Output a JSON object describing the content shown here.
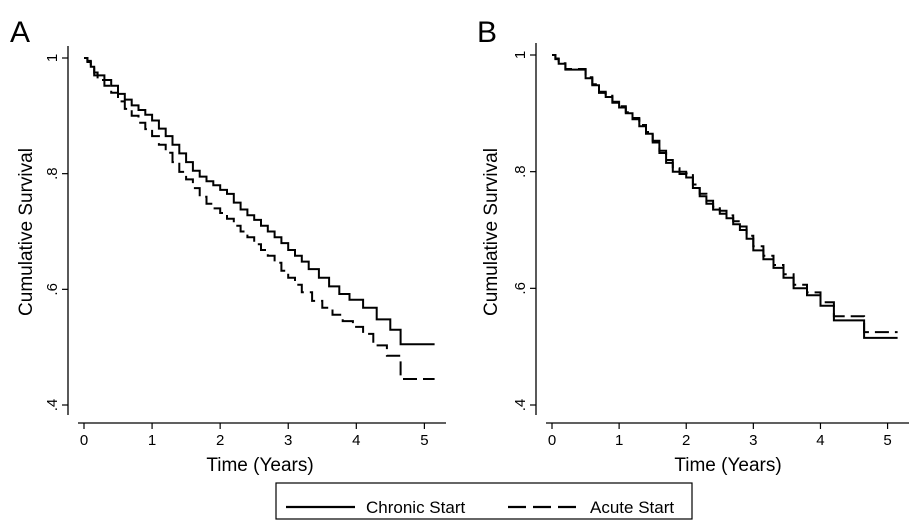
{
  "chart_data": [
    {
      "type": "line",
      "title": "",
      "panel_label": "A",
      "xlabel": "Time (Years)",
      "ylabel": "Cumulative Survival",
      "xlim": [
        0,
        5.2
      ],
      "ylim": [
        0.4,
        1.0
      ],
      "x_ticks": [
        0,
        1,
        2,
        3,
        4,
        5
      ],
      "x_tick_labels": [
        "0",
        "1",
        "2",
        "3",
        "4",
        "5"
      ],
      "y_ticks": [
        0.4,
        0.6,
        0.8,
        1.0
      ],
      "y_tick_labels": [
        ".4",
        ".6",
        ".8",
        "1"
      ],
      "grid": false,
      "step": true,
      "series": [
        {
          "name": "Chronic Start",
          "style": "solid",
          "x": [
            0,
            0.05,
            0.1,
            0.15,
            0.2,
            0.3,
            0.4,
            0.5,
            0.6,
            0.7,
            0.8,
            0.9,
            1.0,
            1.1,
            1.2,
            1.3,
            1.4,
            1.5,
            1.6,
            1.7,
            1.8,
            1.9,
            2.0,
            2.1,
            2.2,
            2.3,
            2.4,
            2.5,
            2.6,
            2.7,
            2.8,
            2.9,
            3.0,
            3.1,
            3.2,
            3.3,
            3.45,
            3.6,
            3.75,
            3.9,
            4.1,
            4.3,
            4.5,
            4.65,
            5.15
          ],
          "values": [
            1.0,
            0.995,
            0.985,
            0.975,
            0.97,
            0.962,
            0.952,
            0.938,
            0.928,
            0.918,
            0.91,
            0.902,
            0.892,
            0.878,
            0.865,
            0.85,
            0.835,
            0.82,
            0.805,
            0.795,
            0.787,
            0.78,
            0.772,
            0.765,
            0.75,
            0.738,
            0.728,
            0.72,
            0.71,
            0.7,
            0.69,
            0.68,
            0.668,
            0.658,
            0.648,
            0.635,
            0.62,
            0.605,
            0.592,
            0.582,
            0.568,
            0.548,
            0.53,
            0.505,
            0.505
          ]
        },
        {
          "name": "Acute Start",
          "style": "dashed",
          "x": [
            0,
            0.05,
            0.1,
            0.15,
            0.2,
            0.3,
            0.4,
            0.5,
            0.6,
            0.7,
            0.8,
            0.9,
            1.0,
            1.1,
            1.2,
            1.3,
            1.4,
            1.5,
            1.6,
            1.7,
            1.8,
            1.9,
            2.0,
            2.1,
            2.2,
            2.3,
            2.4,
            2.5,
            2.6,
            2.7,
            2.8,
            2.9,
            3.0,
            3.1,
            3.2,
            3.35,
            3.5,
            3.65,
            3.8,
            3.95,
            4.1,
            4.25,
            4.45,
            4.65,
            5.15
          ],
          "values": [
            1.0,
            0.993,
            0.982,
            0.97,
            0.962,
            0.952,
            0.94,
            0.925,
            0.912,
            0.9,
            0.888,
            0.877,
            0.865,
            0.85,
            0.836,
            0.82,
            0.803,
            0.79,
            0.775,
            0.76,
            0.748,
            0.74,
            0.732,
            0.722,
            0.71,
            0.7,
            0.69,
            0.678,
            0.668,
            0.658,
            0.646,
            0.632,
            0.62,
            0.608,
            0.595,
            0.58,
            0.568,
            0.556,
            0.545,
            0.535,
            0.523,
            0.503,
            0.485,
            0.445,
            0.445
          ]
        }
      ]
    },
    {
      "type": "line",
      "title": "",
      "panel_label": "B",
      "xlabel": "Time (Years)",
      "ylabel": "Cumulative Survival",
      "xlim": [
        0,
        5.2
      ],
      "ylim": [
        0.4,
        1.0
      ],
      "x_ticks": [
        0,
        1,
        2,
        3,
        4,
        5
      ],
      "x_tick_labels": [
        "0",
        "1",
        "2",
        "3",
        "4",
        "5"
      ],
      "y_ticks": [
        0.4,
        0.6,
        0.8,
        1.0
      ],
      "y_tick_labels": [
        ".4",
        ".6",
        ".8",
        "1"
      ],
      "grid": false,
      "step": true,
      "series": [
        {
          "name": "Chronic Start",
          "style": "solid",
          "x": [
            0,
            0.05,
            0.1,
            0.2,
            0.3,
            0.5,
            0.6,
            0.7,
            0.8,
            0.9,
            1.0,
            1.1,
            1.2,
            1.3,
            1.4,
            1.5,
            1.6,
            1.7,
            1.8,
            1.9,
            2.0,
            2.1,
            2.2,
            2.3,
            2.4,
            2.5,
            2.6,
            2.7,
            2.8,
            2.9,
            3.0,
            3.15,
            3.3,
            3.45,
            3.6,
            3.8,
            4.0,
            4.2,
            4.65,
            5.15
          ],
          "values": [
            1.0,
            0.993,
            0.985,
            0.975,
            0.975,
            0.96,
            0.948,
            0.935,
            0.928,
            0.918,
            0.91,
            0.9,
            0.89,
            0.878,
            0.865,
            0.85,
            0.832,
            0.815,
            0.8,
            0.796,
            0.79,
            0.772,
            0.758,
            0.745,
            0.735,
            0.728,
            0.72,
            0.71,
            0.7,
            0.685,
            0.665,
            0.65,
            0.635,
            0.618,
            0.6,
            0.588,
            0.57,
            0.545,
            0.515,
            0.515
          ]
        },
        {
          "name": "Acute Start",
          "style": "dashed",
          "x": [
            0,
            0.05,
            0.1,
            0.2,
            0.3,
            0.5,
            0.6,
            0.7,
            0.8,
            0.9,
            1.0,
            1.1,
            1.2,
            1.3,
            1.4,
            1.5,
            1.6,
            1.7,
            1.8,
            1.9,
            2.0,
            2.1,
            2.2,
            2.3,
            2.4,
            2.5,
            2.6,
            2.7,
            2.8,
            2.9,
            3.0,
            3.15,
            3.3,
            3.45,
            3.6,
            3.8,
            4.0,
            4.2,
            4.65,
            5.15
          ],
          "values": [
            1.0,
            0.994,
            0.986,
            0.976,
            0.976,
            0.962,
            0.95,
            0.937,
            0.93,
            0.92,
            0.912,
            0.902,
            0.892,
            0.88,
            0.868,
            0.853,
            0.836,
            0.82,
            0.806,
            0.8,
            0.797,
            0.778,
            0.762,
            0.75,
            0.74,
            0.733,
            0.725,
            0.715,
            0.706,
            0.69,
            0.672,
            0.656,
            0.64,
            0.624,
            0.606,
            0.593,
            0.576,
            0.552,
            0.525,
            0.525
          ]
        }
      ]
    }
  ],
  "legend": {
    "position": "bottom-center",
    "items": [
      {
        "label": "Chronic Start",
        "style": "solid"
      },
      {
        "label": "Acute Start",
        "style": "dashed"
      }
    ]
  }
}
